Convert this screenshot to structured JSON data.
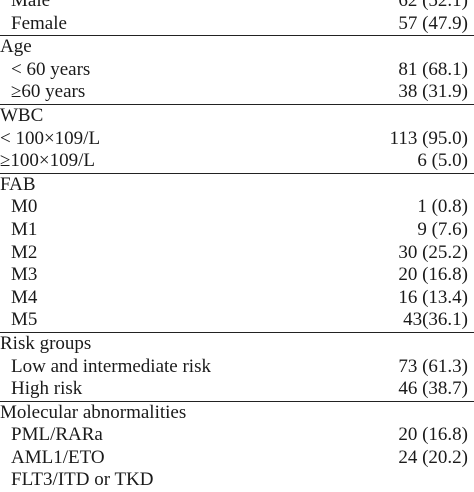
{
  "sections": [
    {
      "rows": [
        {
          "label": "Male",
          "value": "62 (52.1)",
          "indent": true
        },
        {
          "label": "Female",
          "value": "57 (47.9)",
          "indent": true
        }
      ]
    },
    {
      "rows": [
        {
          "label": "Age",
          "value": "",
          "indent": false
        },
        {
          "label": "< 60 years",
          "value": "81 (68.1)",
          "indent": true
        },
        {
          "label": "≥60 years",
          "value": "38 (31.9)",
          "indent": true
        }
      ]
    },
    {
      "rows": [
        {
          "label": "WBC",
          "value": "",
          "indent": false
        },
        {
          "label": "< 100×109/L",
          "value": "113 (95.0)",
          "indent": false
        },
        {
          "label": "≥100×109/L",
          "value": "6 (5.0)",
          "indent": false
        }
      ]
    },
    {
      "rows": [
        {
          "label": "FAB",
          "value": "",
          "indent": false
        },
        {
          "label": "M0",
          "value": "1 (0.8)",
          "indent": true
        },
        {
          "label": "M1",
          "value": "9 (7.6)",
          "indent": true
        },
        {
          "label": "M2",
          "value": "30 (25.2)",
          "indent": true
        },
        {
          "label": "M3",
          "value": "20 (16.8)",
          "indent": true
        },
        {
          "label": "M4",
          "value": "16 (13.4)",
          "indent": true
        },
        {
          "label": "M5",
          "value": "43(36.1)",
          "indent": true
        }
      ]
    },
    {
      "rows": [
        {
          "label": "Risk groups",
          "value": "",
          "indent": false
        },
        {
          "label": "Low and intermediate risk",
          "value": "73 (61.3)",
          "indent": true
        },
        {
          "label": "High risk",
          "value": "46 (38.7)",
          "indent": true
        }
      ]
    },
    {
      "rows": [
        {
          "label": "Molecular abnormalities",
          "value": "",
          "indent": false
        },
        {
          "label": "PML/RARa",
          "value": "20 (16.8)",
          "indent": true
        },
        {
          "label": "AML1/ETO",
          "value": "24 (20.2)",
          "indent": true
        },
        {
          "label": "FLT3/ITD or TKD",
          "value": "",
          "indent": true
        }
      ]
    }
  ]
}
